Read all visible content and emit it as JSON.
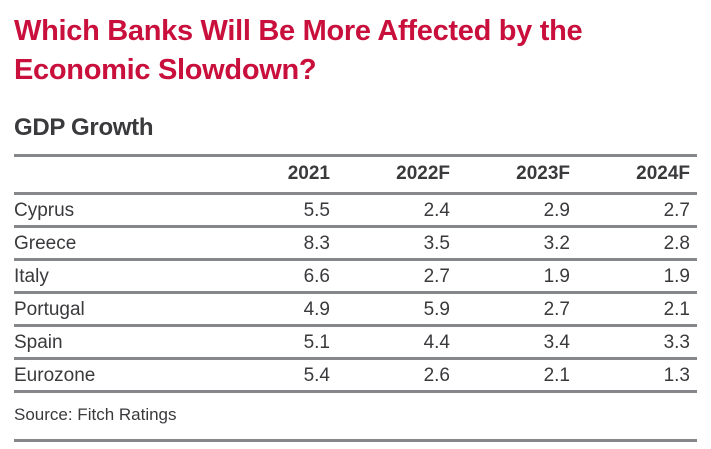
{
  "page": {
    "title": "Which Banks Will Be More Affected by the Economic Slowdown?",
    "section_title": "GDP Growth",
    "source": "Source: Fitch Ratings"
  },
  "colors": {
    "accent_red": "#C9103C",
    "text": "#3A3A3D",
    "rule_gray": "#85878A",
    "background": "#FFFFFF"
  },
  "chart_data": {
    "type": "table",
    "title": "GDP Growth",
    "columns": [
      "2021",
      "2022F",
      "2023F",
      "2024F"
    ],
    "rows": [
      {
        "label": "Cyprus",
        "values": [
          "5.5",
          "2.4",
          "2.9",
          "2.7"
        ]
      },
      {
        "label": "Greece",
        "values": [
          "8.3",
          "3.5",
          "3.2",
          "2.8"
        ]
      },
      {
        "label": "Italy",
        "values": [
          "6.6",
          "2.7",
          "1.9",
          "1.9"
        ]
      },
      {
        "label": "Portugal",
        "values": [
          "4.9",
          "5.9",
          "2.7",
          "2.1"
        ]
      },
      {
        "label": "Spain",
        "values": [
          "5.1",
          "4.4",
          "3.4",
          "3.3"
        ]
      },
      {
        "label": "Eurozone",
        "values": [
          "5.4",
          "2.6",
          "2.1",
          "1.3"
        ]
      }
    ],
    "source": "Source: Fitch Ratings",
    "layout": {
      "header_rule": true,
      "row_rules": true,
      "numeric_alignment": "right"
    }
  }
}
